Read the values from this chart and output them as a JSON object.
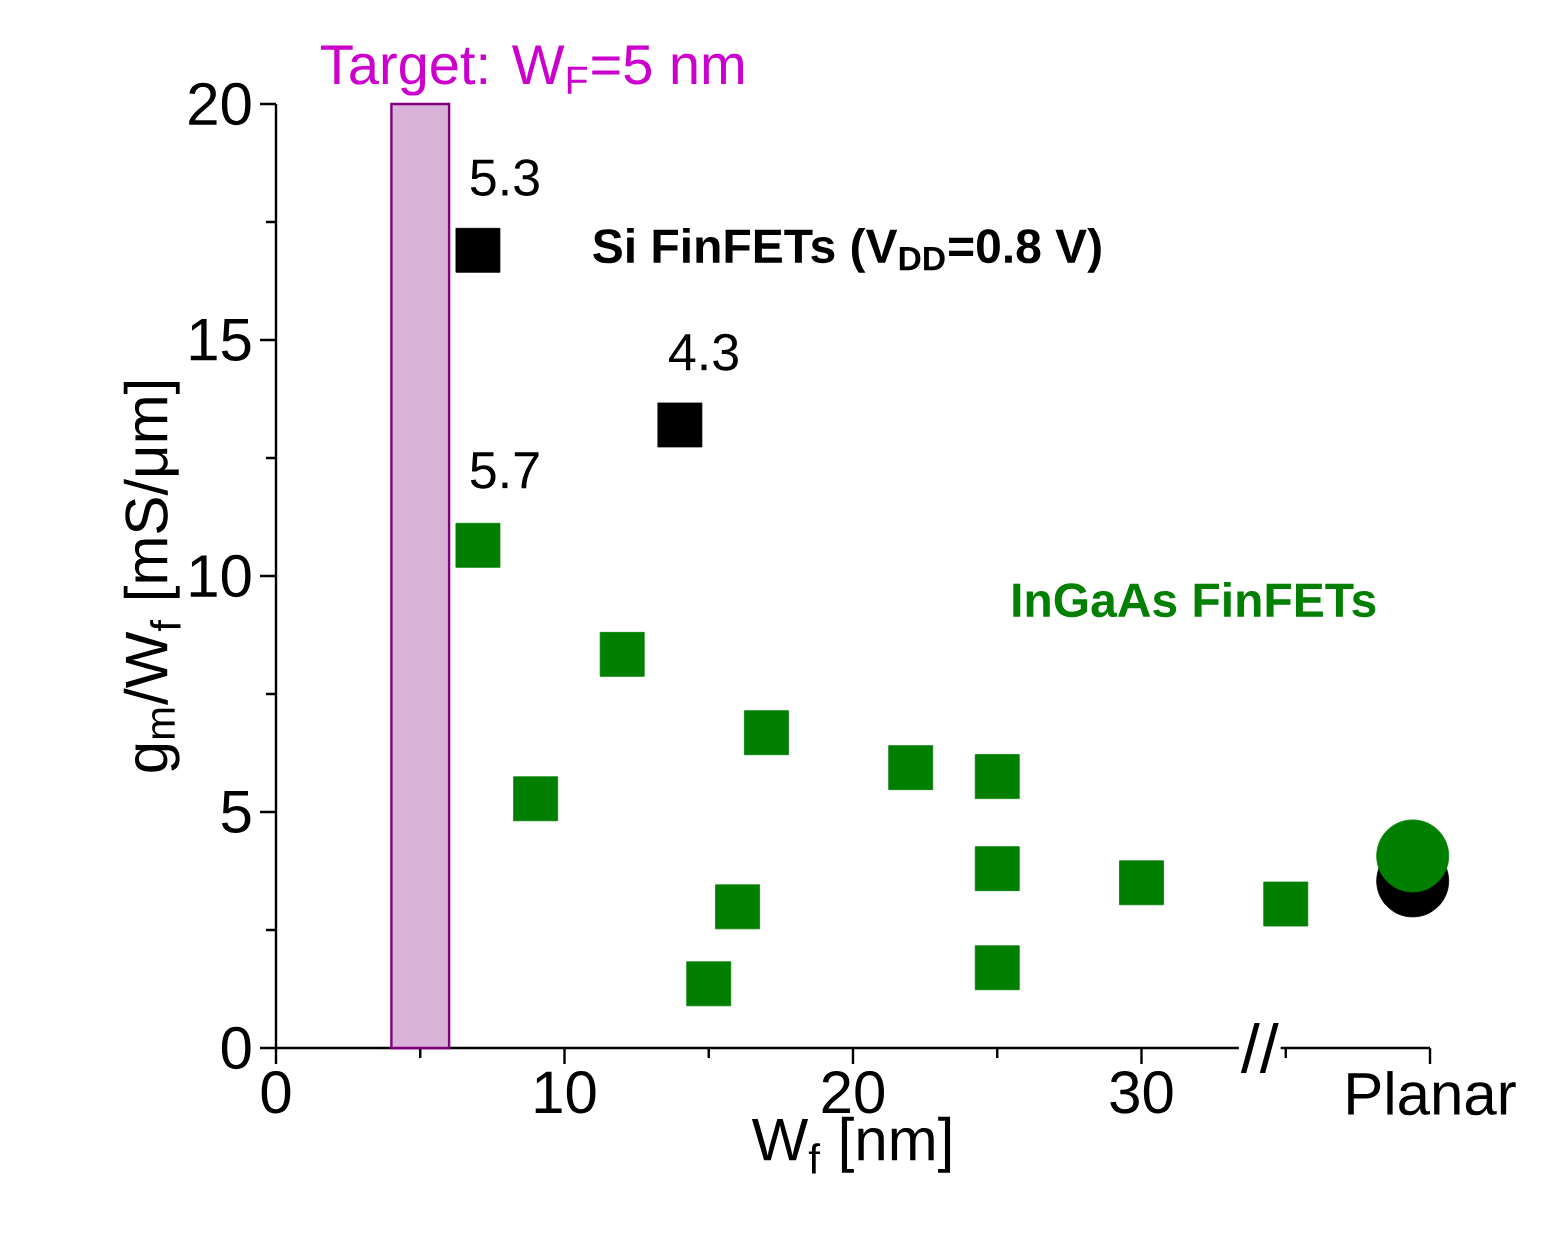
{
  "chart_data": {
    "type": "scatter",
    "xlabel": "W$_{f}$ [nm]",
    "ylabel": "g$_{m}$/W$_{f}$ [mS/μm]",
    "xlim": [
      0,
      40
    ],
    "ylim": [
      0,
      20
    ],
    "xticks": [
      0,
      10,
      20,
      30,
      {
        "value": 40,
        "label": "Planar"
      }
    ],
    "yticks": [
      0,
      5,
      10,
      15,
      20
    ],
    "grid": false,
    "series": [
      {
        "name": "Si FinFETs (V$_{DD}$=0.8 V)",
        "color": "#000000",
        "marker": "square",
        "x": [
          7,
          14
        ],
        "values": [
          16.9,
          13.2
        ]
      },
      {
        "name": "InGaAs FinFETs",
        "color": "#007f00",
        "marker": "square",
        "x": [
          7,
          9,
          12,
          15,
          16,
          17,
          22,
          25,
          25,
          25,
          30,
          35
        ],
        "values": [
          10.65,
          5.28,
          8.34,
          1.36,
          2.99,
          6.68,
          5.94,
          5.75,
          3.8,
          1.7,
          3.5,
          3.05
        ]
      },
      {
        "color": "#000000",
        "marker": "circle",
        "x": [
          39.4
        ],
        "values": [
          3.54
        ]
      },
      {
        "color": "#007f00",
        "marker": "circle",
        "x": [
          39.4
        ],
        "values": [
          4.07
        ]
      }
    ],
    "bands": [
      {
        "axis": "x",
        "from": 4,
        "to": 6,
        "label": "Target: W$_{F}$=5 nm",
        "color": "#800080"
      }
    ],
    "annotations": [
      "5.3",
      "4.3",
      "5.7",
      "//"
    ]
  }
}
